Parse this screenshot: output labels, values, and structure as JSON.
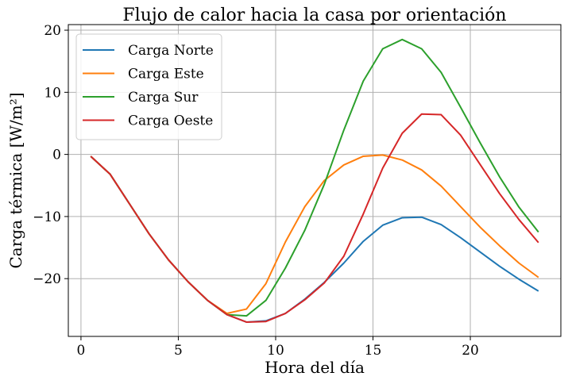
{
  "chart_data": {
    "type": "line",
    "title": "Flujo de calor hacia la casa por orientación",
    "xlabel": "Hora del día",
    "ylabel": "Carga térmica [W/m²]",
    "xlim": [
      -0.65,
      24.65
    ],
    "ylim": [
      -29.3,
      20.9
    ],
    "xticks": [
      0,
      5,
      10,
      15,
      20
    ],
    "yticks": [
      -20,
      -10,
      0,
      10,
      20
    ],
    "grid": true,
    "legend_position": "upper-left",
    "x": [
      0.5,
      1.5,
      2.5,
      3.5,
      4.5,
      5.5,
      6.5,
      7.5,
      8.5,
      9.5,
      10.5,
      11.5,
      12.5,
      13.5,
      14.5,
      15.5,
      16.5,
      17.5,
      18.5,
      19.5,
      20.5,
      21.5,
      22.5,
      23.5
    ],
    "series": [
      {
        "name": "Carga Norte",
        "color": "#1f77b4",
        "values": [
          -0.3,
          -3.2,
          -8.0,
          -12.8,
          -17.0,
          -20.5,
          -23.5,
          -25.8,
          -27.0,
          -26.8,
          -25.6,
          -23.3,
          -20.6,
          -17.5,
          -14.0,
          -11.4,
          -10.2,
          -10.1,
          -11.3,
          -13.4,
          -15.7,
          -18.0,
          -20.1,
          -22.0
        ]
      },
      {
        "name": "Carga Este",
        "color": "#ff7f0e",
        "values": [
          -0.3,
          -3.2,
          -8.0,
          -12.8,
          -17.0,
          -20.5,
          -23.5,
          -25.6,
          -24.9,
          -20.8,
          -14.1,
          -8.4,
          -4.2,
          -1.7,
          -0.3,
          -0.1,
          -0.9,
          -2.5,
          -5.1,
          -8.4,
          -11.7,
          -14.7,
          -17.5,
          -19.8
        ]
      },
      {
        "name": "Carga Sur",
        "color": "#2ca02c",
        "values": [
          -0.3,
          -3.2,
          -8.0,
          -12.8,
          -17.0,
          -20.5,
          -23.5,
          -25.8,
          -26.0,
          -23.5,
          -18.3,
          -12.2,
          -4.8,
          3.9,
          11.8,
          17.0,
          18.5,
          17.0,
          13.2,
          7.6,
          1.9,
          -3.6,
          -8.5,
          -12.5
        ]
      },
      {
        "name": "Carga Oeste",
        "color": "#d62728",
        "values": [
          -0.3,
          -3.2,
          -8.0,
          -12.8,
          -17.0,
          -20.5,
          -23.5,
          -25.8,
          -27.0,
          -26.9,
          -25.6,
          -23.4,
          -20.7,
          -16.4,
          -9.6,
          -2.2,
          3.4,
          6.5,
          6.4,
          3.1,
          -1.6,
          -6.3,
          -10.5,
          -14.2
        ]
      }
    ]
  }
}
